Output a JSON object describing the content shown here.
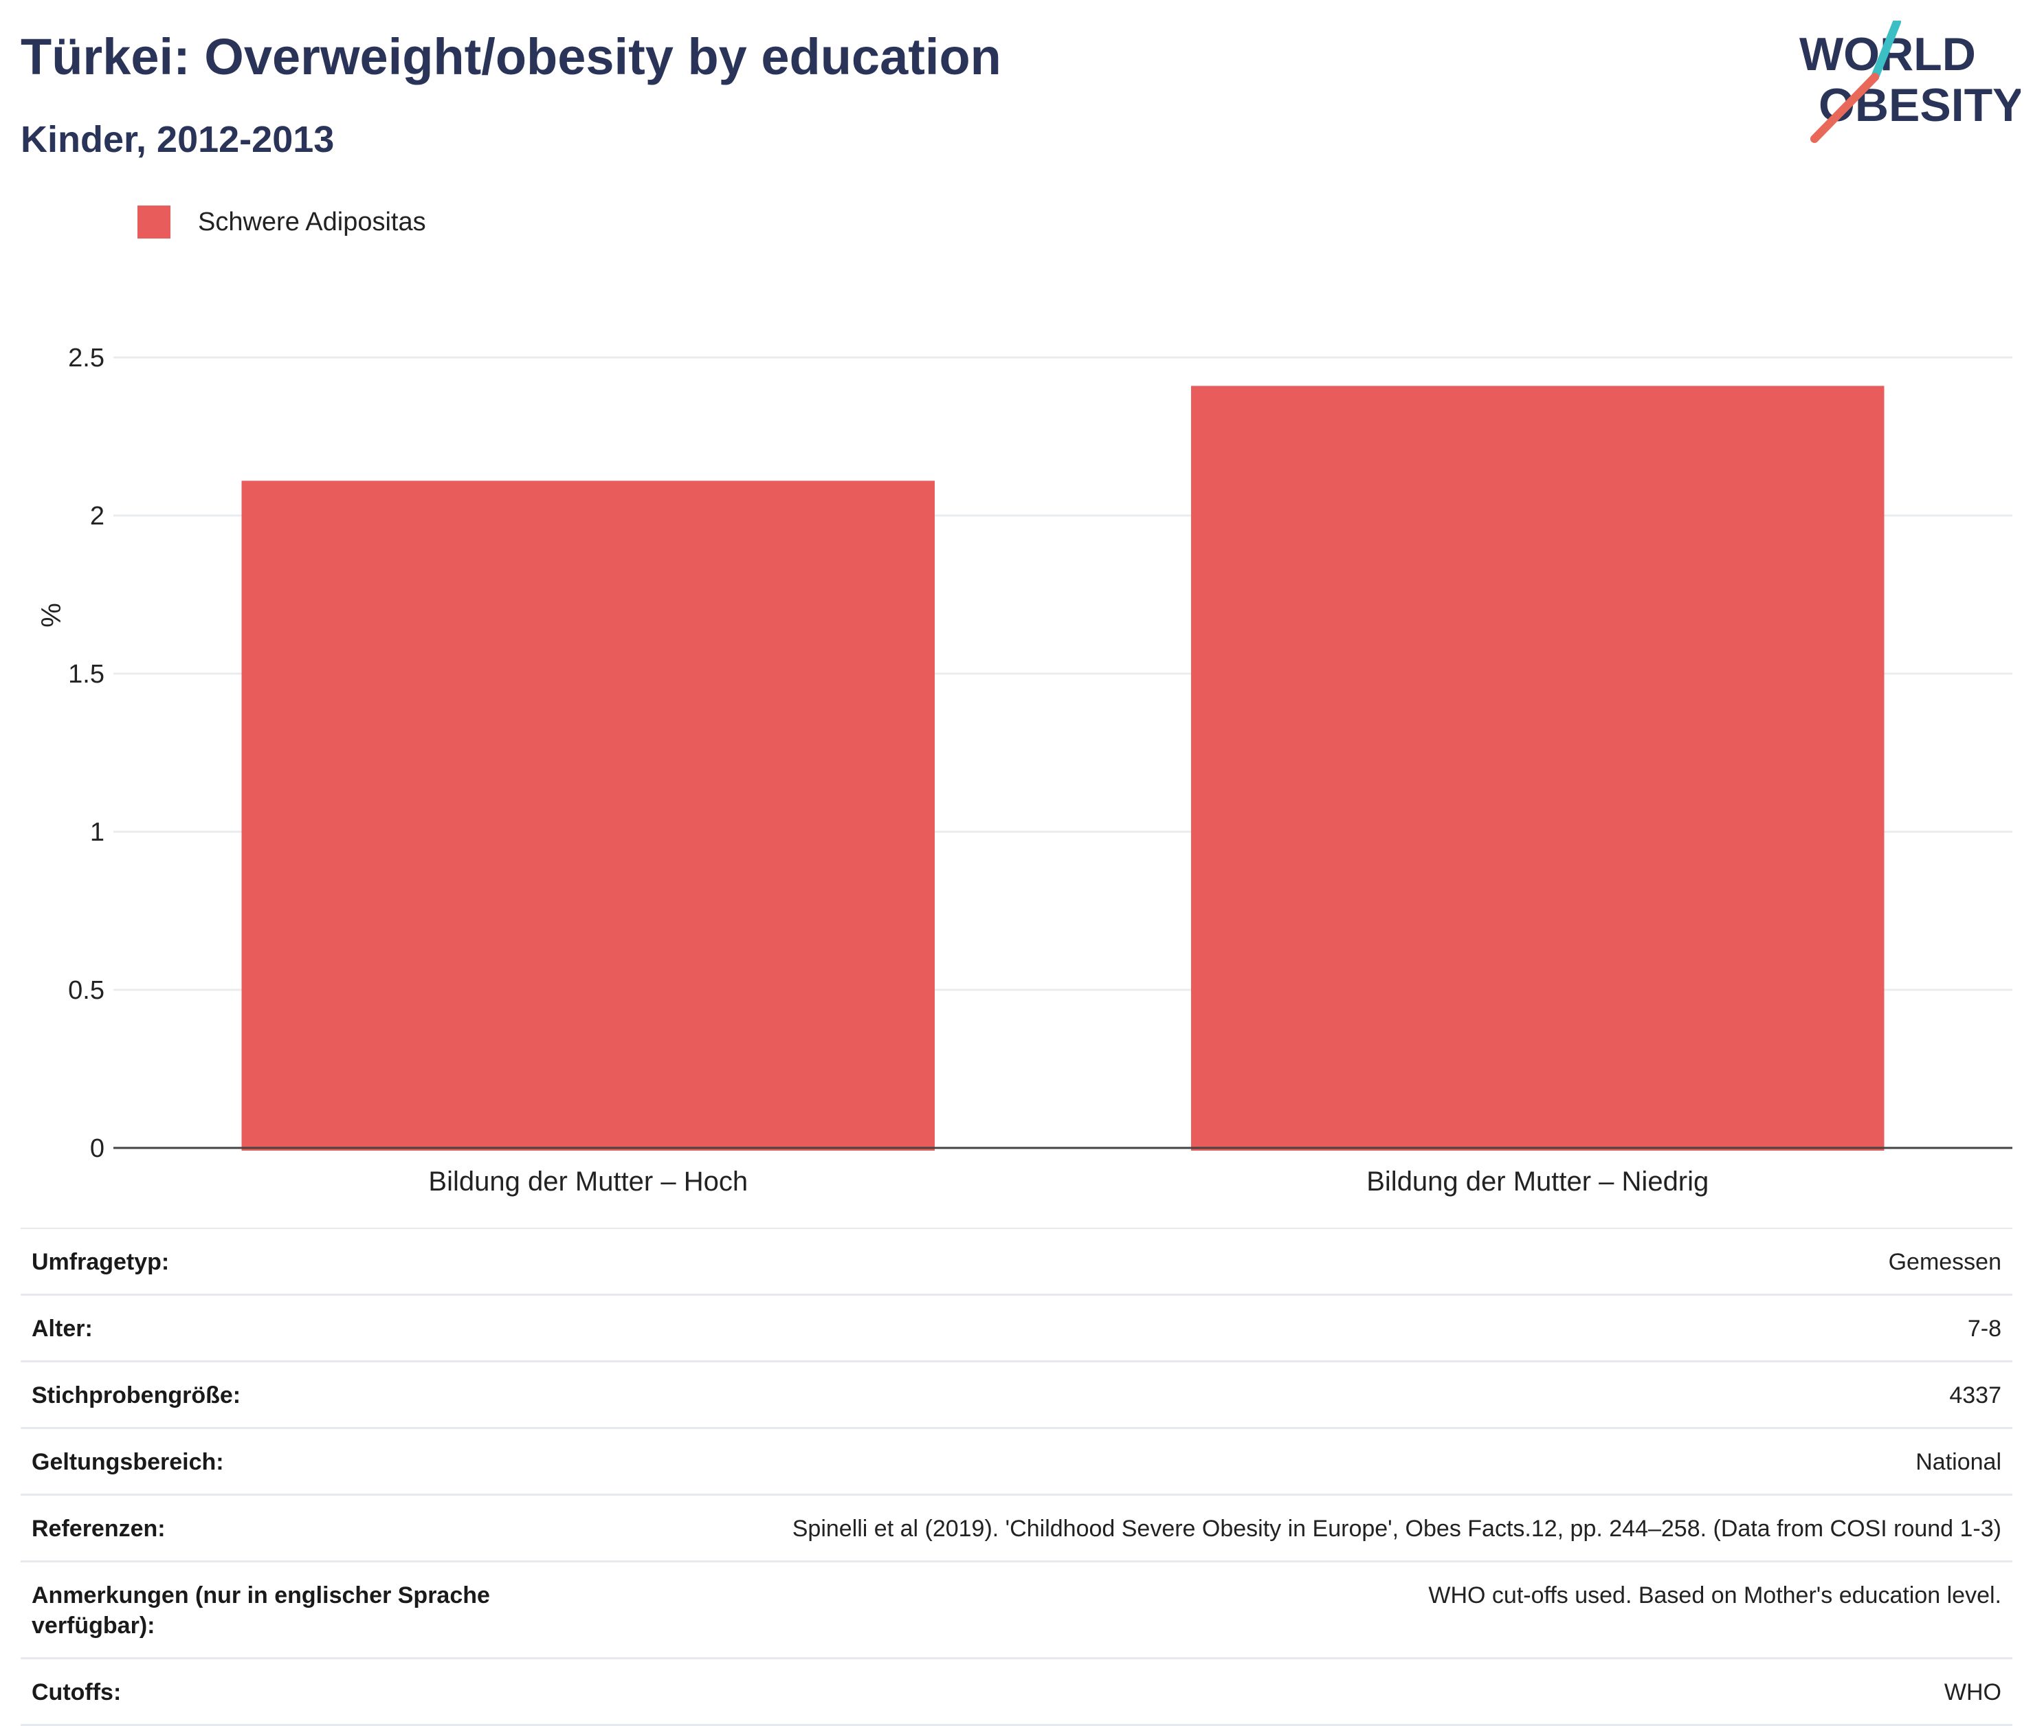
{
  "header": {
    "title": "Türkei: Overweight/obesity by education",
    "subtitle": "Kinder, 2012-2013"
  },
  "logo": {
    "line1": "WORLD",
    "line2": "OBESITY"
  },
  "colors": {
    "bar": "#e85c5c",
    "title": "#2a3358",
    "logo_text": "#2a3358",
    "logo_teal": "#3bbfc4",
    "logo_coral": "#e8685a"
  },
  "chart_data": {
    "type": "bar",
    "categories": [
      "Bildung der Mutter – Hoch",
      "Bildung der Mutter – Niedrig"
    ],
    "series": [
      {
        "name": "Schwere Adipositas",
        "values": [
          2.11,
          2.41
        ]
      }
    ],
    "ylabel": "%",
    "ylim": [
      0,
      2.5
    ],
    "yticks": [
      "0",
      "0.5",
      "1",
      "1.5",
      "2",
      "2.5"
    ],
    "grid": true,
    "legend": "top-left"
  },
  "meta": [
    {
      "label": "Umfragetyp:",
      "value": "Gemessen"
    },
    {
      "label": "Alter:",
      "value": "7-8"
    },
    {
      "label": "Stichprobengröße:",
      "value": "4337"
    },
    {
      "label": "Geltungsbereich:",
      "value": "National"
    },
    {
      "label": "Referenzen:",
      "value": "Spinelli et al (2019). 'Childhood Severe Obesity in Europe', Obes Facts.12, pp. 244–258. (Data from COSI round 1-3)"
    },
    {
      "label": "Anmerkungen (nur in englischer Sprache verfügbar):",
      "value": "WHO cut-offs used. Based on Mother's education level."
    },
    {
      "label": "Cutoffs:",
      "value": "WHO"
    }
  ]
}
